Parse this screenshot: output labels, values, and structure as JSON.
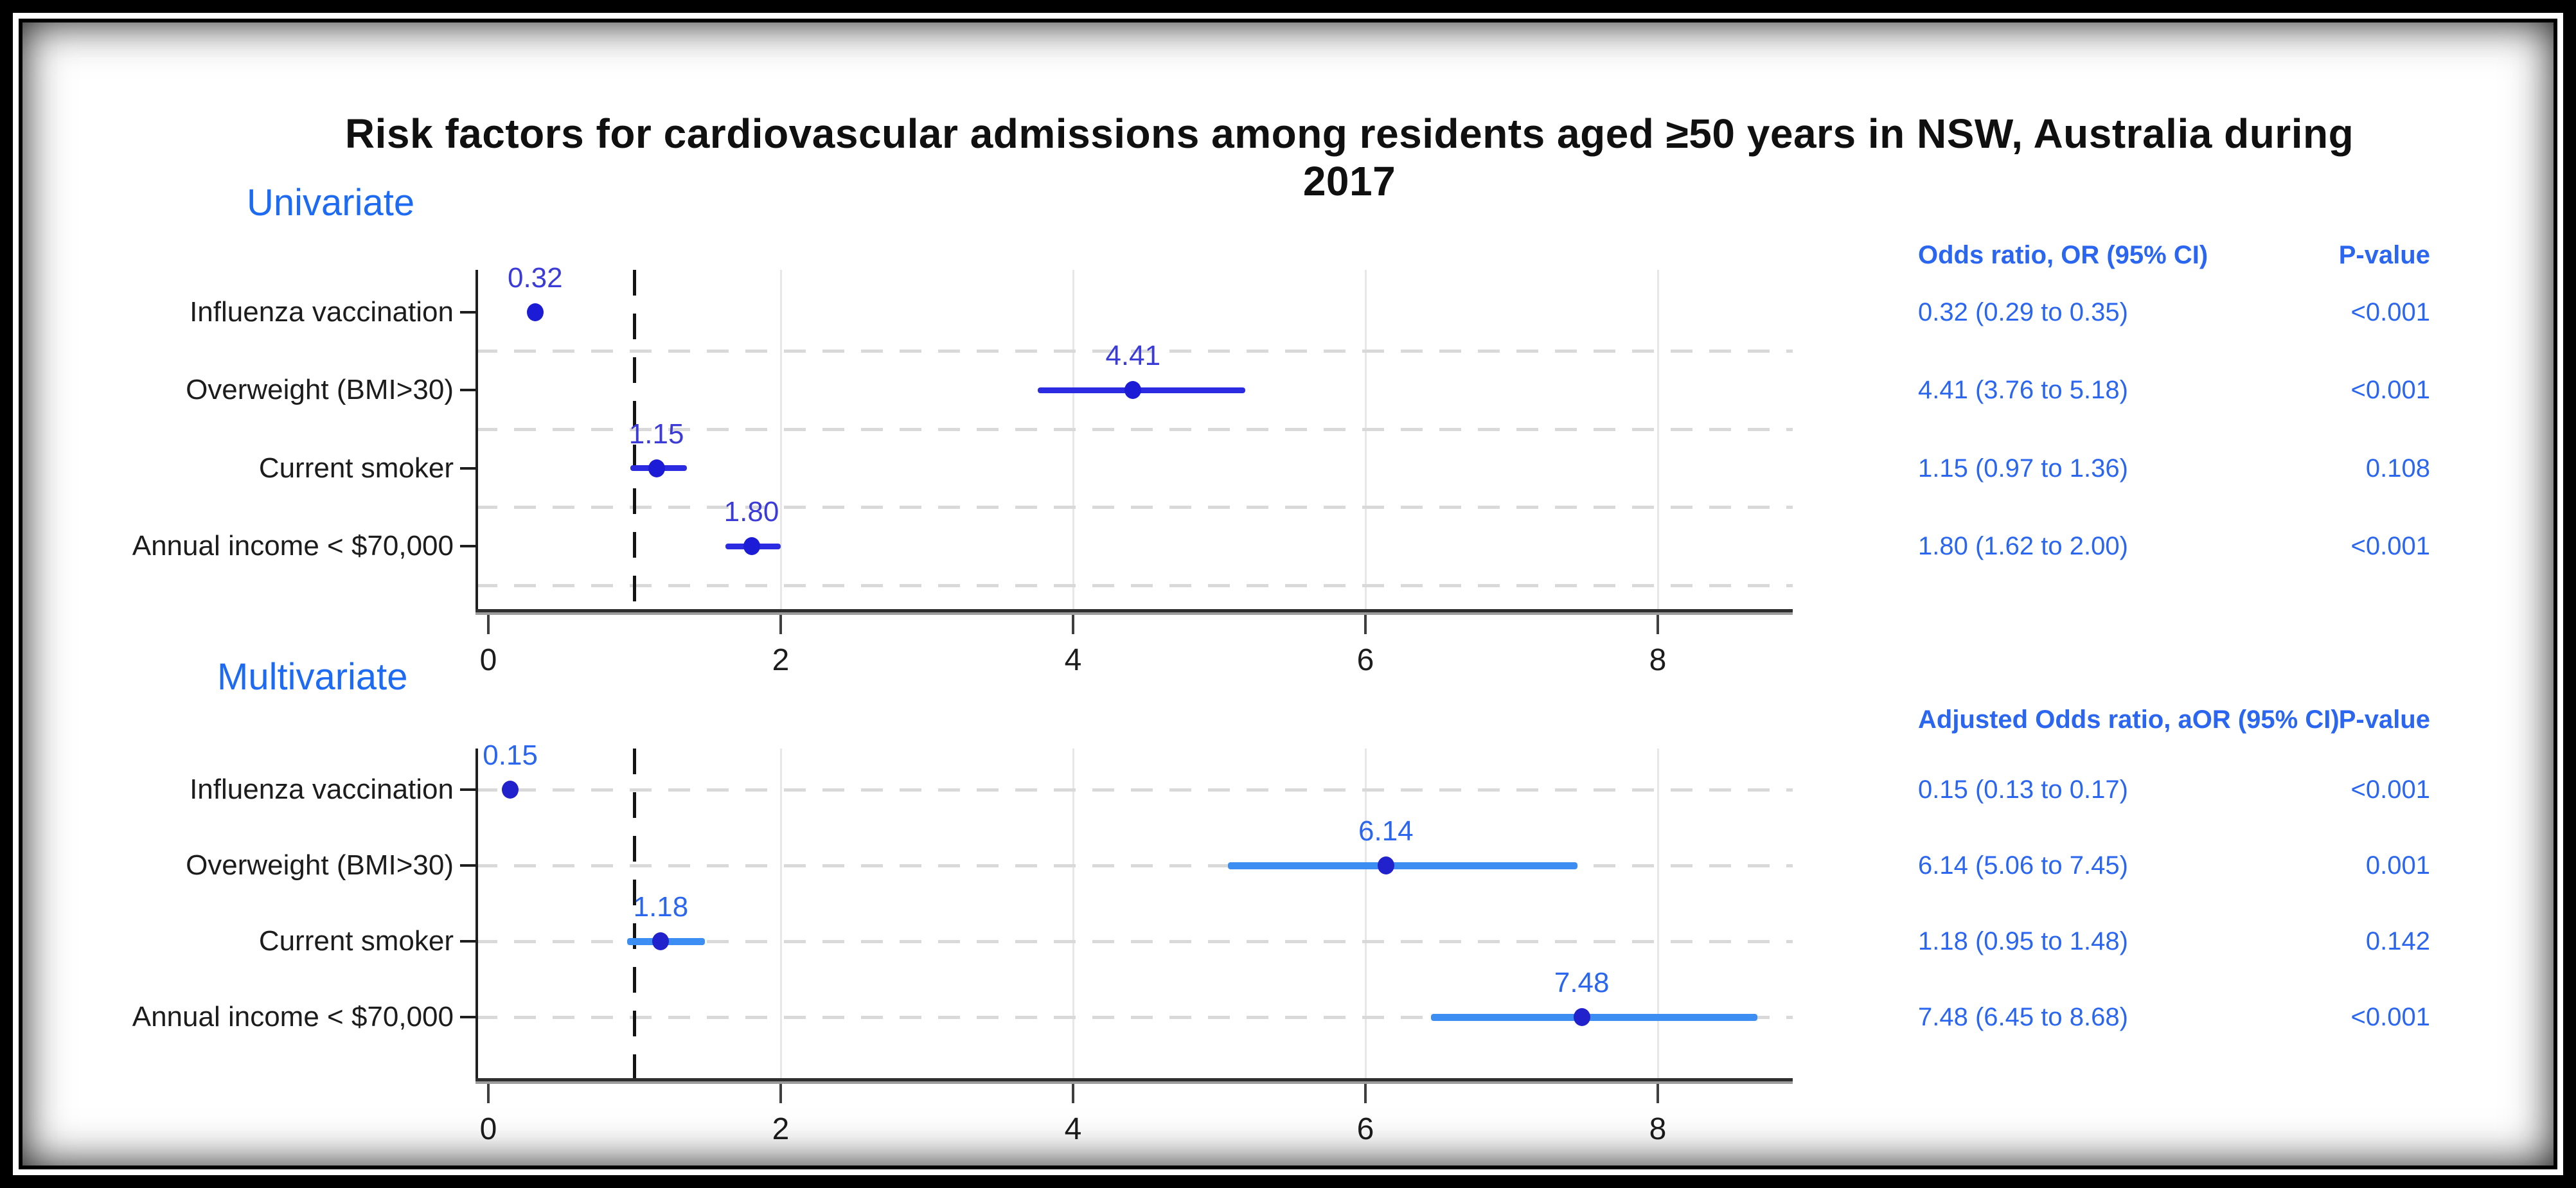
{
  "title": "Risk factors for cardiovascular admissions among residents aged ≥50 years in NSW, Australia during 2017",
  "colors": {
    "blue_text": "#2a66f0",
    "section_label": "#1d6bf3",
    "h_grid": "#d9d9d9",
    "v_grid": "#e7e7e7",
    "ref_line": "#141414"
  },
  "chart_data": [
    {
      "type": "scatter",
      "variant": "forest-plot",
      "section_label": "Univariate",
      "categories": [
        "Influenza vaccination",
        "Overweight (BMI>30)",
        "Current smoker",
        "Annual income < $70,000"
      ],
      "series": [
        {
          "name": "Odds ratio, OR",
          "values": [
            0.32,
            4.41,
            1.15,
            1.8
          ],
          "ci_low": [
            0.29,
            3.76,
            0.97,
            1.62
          ],
          "ci_high": [
            0.35,
            5.18,
            1.36,
            2.0
          ]
        }
      ],
      "point_labels": [
        "0.32",
        "4.41",
        "1.15",
        "1.80"
      ],
      "xlim": [
        0,
        8.93
      ],
      "xticks": [
        "0",
        "2",
        "4",
        "6",
        "8"
      ],
      "reference_line_x": 1,
      "grid": {
        "horizontal": "dashed light gray between rows",
        "vertical": "light solid at ticks 2,4,6,8"
      },
      "legend": "none",
      "style": {
        "ci_color": "#2b2be2",
        "dot_color": "#1c1cd6",
        "point_label_color": "#3b3bd8",
        "ci_thickness": 9
      },
      "table": {
        "headers": [
          "Odds ratio, OR (95% CI)",
          "P-value"
        ],
        "rows": [
          [
            "0.32 (0.29 to 0.35)",
            "<0.001"
          ],
          [
            "4.41 (3.76 to 5.18)",
            "<0.001"
          ],
          [
            "1.15 (0.97 to 1.36)",
            "0.108"
          ],
          [
            "1.80 (1.62 to 2.00)",
            "<0.001"
          ]
        ]
      }
    },
    {
      "type": "scatter",
      "variant": "forest-plot",
      "section_label": "Multivariate",
      "categories": [
        "Influenza vaccination",
        "Overweight (BMI>30)",
        "Current smoker",
        "Annual income < $70,000"
      ],
      "series": [
        {
          "name": "Adjusted Odds ratio, aOR",
          "values": [
            0.15,
            6.14,
            1.18,
            7.48
          ],
          "ci_low": [
            0.13,
            5.06,
            0.95,
            6.45
          ],
          "ci_high": [
            0.17,
            7.45,
            1.48,
            8.68
          ]
        }
      ],
      "point_labels": [
        "0.15",
        "6.14",
        "1.18",
        "7.48"
      ],
      "xlim": [
        0,
        8.93
      ],
      "xticks": [
        "0",
        "2",
        "4",
        "6",
        "8"
      ],
      "reference_line_x": 1,
      "grid": {
        "horizontal": "dashed light gray on rows",
        "vertical": "light solid at ticks 2,4,6,8"
      },
      "legend": "none",
      "style": {
        "ci_color": "#3d8ef2",
        "dot_color": "#2222cc",
        "point_label_color": "#2a66f0",
        "ci_thickness": 11
      },
      "table": {
        "headers": [
          "Adjusted Odds ratio, aOR (95% CI)",
          "P-value"
        ],
        "rows": [
          [
            "0.15 (0.13 to 0.17)",
            "<0.001"
          ],
          [
            "6.14 (5.06 to 7.45)",
            "0.001"
          ],
          [
            "1.18 (0.95 to 1.48)",
            "0.142"
          ],
          [
            "7.48 (6.45 to 8.68)",
            "<0.001"
          ]
        ]
      }
    }
  ]
}
